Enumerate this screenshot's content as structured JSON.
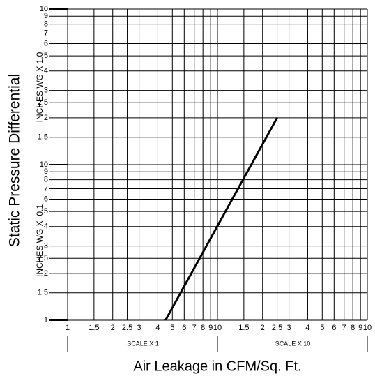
{
  "chart_data": {
    "type": "line",
    "y_label": "Static Pressure Differential",
    "x_label": "Air Leakage in CFM/Sq. Ft.",
    "annotations": [
      "INCHES WG X 1.0",
      "INCHES WG X  0.1",
      "SCALE X 1",
      "SCALE X 10"
    ],
    "xscale": "log",
    "yscale": "log",
    "grid": true,
    "xlim": [
      1,
      100
    ],
    "ylim": [
      0.1,
      10
    ],
    "xticks": [
      1,
      1.5,
      2,
      2.5,
      3,
      4,
      5,
      6,
      7,
      8,
      9,
      10,
      {
        "value": 15,
        "label": "1.5"
      },
      {
        "value": 20,
        "label": "2"
      },
      {
        "value": 25,
        "label": "2.5"
      },
      {
        "value": 30,
        "label": "3"
      },
      {
        "value": 40,
        "label": "4"
      },
      {
        "value": 50,
        "label": "5"
      },
      {
        "value": 60,
        "label": "6"
      },
      {
        "value": 70,
        "label": "7"
      },
      {
        "value": 80,
        "label": "8"
      },
      {
        "value": 90,
        "label": "9"
      },
      {
        "value": 100,
        "label": "10"
      }
    ],
    "yticks": [
      {
        "value": 0.1,
        "label": "1"
      },
      {
        "value": 0.15,
        "label": "1.5"
      },
      {
        "value": 0.2,
        "label": "2"
      },
      {
        "value": 0.25,
        "label": "2,5"
      },
      {
        "value": 0.3,
        "label": "3"
      },
      {
        "value": 0.4,
        "label": "4"
      },
      {
        "value": 0.5,
        "label": "5"
      },
      {
        "value": 0.6,
        "label": "6"
      },
      {
        "value": 0.7,
        "label": "7"
      },
      {
        "value": 0.8,
        "label": "8"
      },
      {
        "value": 0.9,
        "label": "9"
      },
      {
        "value": 1,
        "label": "10"
      },
      1.5,
      2,
      {
        "value": 2.5,
        "label": "2,5"
      },
      3,
      4,
      5,
      6,
      7,
      8,
      9,
      10
    ],
    "series": [
      {
        "color": "#000000",
        "x": [
          4.5,
          25
        ],
        "values": [
          0.1,
          2
        ]
      }
    ]
  }
}
